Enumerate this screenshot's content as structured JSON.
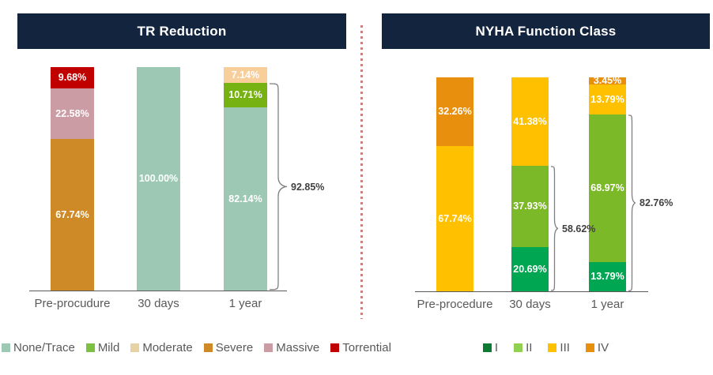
{
  "page": {
    "background": "#FFFFFF"
  },
  "divider": {
    "color": "#C9827E"
  },
  "chart_data": [
    {
      "type": "bar",
      "subtype": "stacked-percent-column",
      "title": "TR Reduction",
      "title_bg": "#13243E",
      "title_color": "#FFFFFF",
      "categories": [
        "Pre-procudure",
        "30 days",
        "1 year"
      ],
      "ylim": [
        0,
        100
      ],
      "grid": false,
      "legend_position": "bottom-left",
      "value_suffix": "%",
      "series": [
        {
          "name": "None/Trace",
          "color": "#9DC9B4",
          "swatch": "#9DC9B4",
          "values": [
            0,
            100.0,
            82.14
          ]
        },
        {
          "name": "Mild",
          "color": "#76B212",
          "swatch": "#7CC142",
          "values": [
            0,
            0,
            10.71
          ]
        },
        {
          "name": "Moderate",
          "color": "#F8CE9B",
          "swatch": "#E6D2A2",
          "values": [
            0,
            0,
            7.14
          ]
        },
        {
          "name": "Severe",
          "color": "#CF8A28",
          "swatch": "#CF8A28",
          "values": [
            67.74,
            0,
            0
          ]
        },
        {
          "name": "Massive",
          "color": "#CC9CA5",
          "swatch": "#CC9CA5",
          "values": [
            22.58,
            0,
            0
          ]
        },
        {
          "name": "Torrential",
          "color": "#C00000",
          "swatch": "#C00000",
          "values": [
            9.68,
            0,
            0
          ]
        }
      ],
      "brackets": [
        {
          "category_index": 2,
          "span_pct": 92.85,
          "label": "92.85%"
        }
      ]
    },
    {
      "type": "bar",
      "subtype": "stacked-percent-column",
      "title": "NYHA Function Class",
      "title_bg": "#13243E",
      "title_color": "#FFFFFF",
      "categories": [
        "Pre-procedure",
        "30 days",
        "1 year"
      ],
      "ylim": [
        0,
        100
      ],
      "grid": false,
      "legend_position": "bottom-center",
      "value_suffix": "%",
      "series": [
        {
          "name": "I",
          "color": "#00A651",
          "swatch": "#0B7A33",
          "values": [
            0,
            20.69,
            13.79
          ]
        },
        {
          "name": "II",
          "color": "#7CB928",
          "swatch": "#92D050",
          "values": [
            0,
            37.93,
            68.97
          ]
        },
        {
          "name": "III",
          "color": "#FFC000",
          "swatch": "#FFC000",
          "values": [
            67.74,
            41.38,
            13.79
          ]
        },
        {
          "name": "IV",
          "color": "#E98F0E",
          "swatch": "#E98F0E",
          "values": [
            32.26,
            0,
            3.45
          ]
        }
      ],
      "brackets": [
        {
          "category_index": 1,
          "span_pct": 58.62,
          "label": "58.62%"
        },
        {
          "category_index": 2,
          "span_pct": 82.76,
          "label": "82.76%"
        }
      ]
    }
  ]
}
